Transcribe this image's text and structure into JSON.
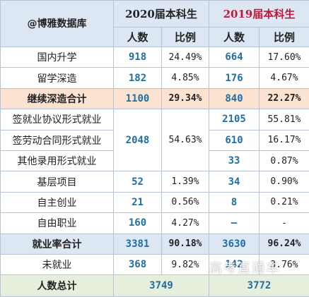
{
  "header": {
    "brand": "@博雅数据库",
    "year_2020": "2020届本科生",
    "year_2019": "2019届本科生",
    "col_count": "人数",
    "col_ratio": "比例"
  },
  "rows": {
    "domestic": {
      "label": "国内升学",
      "n2020": "918",
      "p2020": "24.49%",
      "n2019": "664",
      "p2019": "17.60%"
    },
    "abroad": {
      "label": "留学深造",
      "n2020": "182",
      "p2020": "4.85%",
      "n2019": "176",
      "p2019": "4.67%"
    },
    "further_total": {
      "label": "继续深造合计",
      "n2020": "1100",
      "p2020": "29.34%",
      "n2019": "840",
      "p2019": "22.27%"
    },
    "agreement": {
      "label": "签就业协议形式就业",
      "n2019": "2105",
      "p2019": "55.81%"
    },
    "contract": {
      "label": "签劳动合同形式就业",
      "n2020": "2048",
      "p2020": "54.63%",
      "n2019": "610",
      "p2019": "16.17%"
    },
    "other_form": {
      "label": "其他录用形式就业",
      "n2019": "33",
      "p2019": "0.87%"
    },
    "grassroots": {
      "label": "基层项目",
      "n2020": "52",
      "p2020": "1.39%",
      "n2019": "34",
      "p2019": "0.90%"
    },
    "startup": {
      "label": "自主创业",
      "n2020": "21",
      "p2020": "0.56%",
      "n2019": "8",
      "p2019": "0.21%"
    },
    "freelance": {
      "label": "自由职业",
      "n2020": "160",
      "p2020": "4.27%",
      "n2019": "–",
      "p2019": "-"
    },
    "employment_total": {
      "label": "就业率合计",
      "n2020": "3381",
      "p2020": "90.18%",
      "n2019": "3630",
      "p2019": "96.24%"
    },
    "unemployed": {
      "label": "未就业",
      "n2020": "368",
      "p2020": "9.82%",
      "n2019": "142",
      "p2019": "3.76%"
    },
    "grand_total": {
      "label": "人数总计",
      "t2020": "3749",
      "t2019": "3772"
    }
  },
  "watermark": "高考直通车",
  "colors": {
    "year_2019": "#c0183a",
    "year_2020": "#222222",
    "number_blue": "#1f6fa3"
  }
}
